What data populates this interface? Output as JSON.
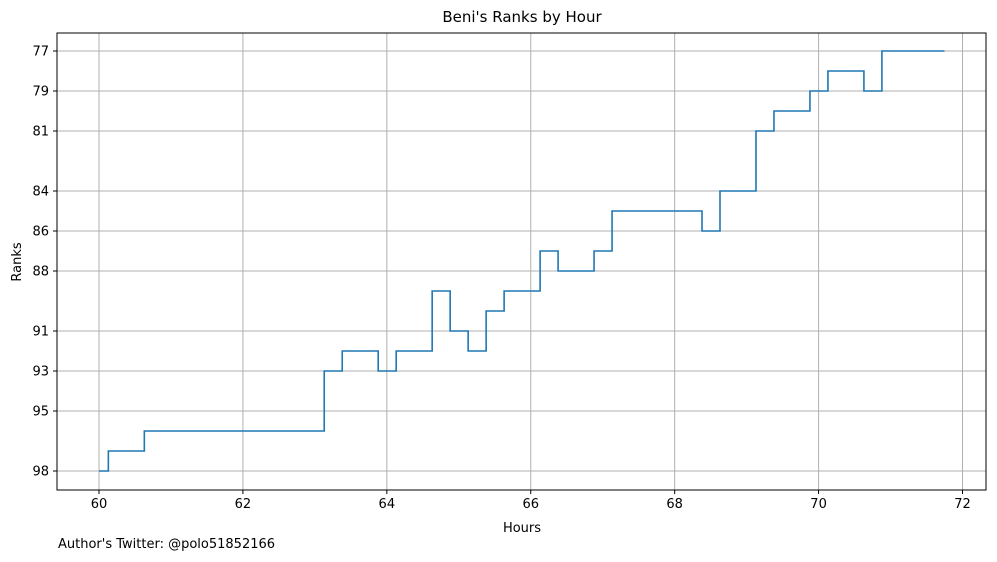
{
  "chart_data": {
    "type": "line",
    "title": "Beni's Ranks by Hour",
    "xlabel": "Hours",
    "ylabel": "Ranks",
    "xlim": [
      59.4,
      72.3
    ],
    "ylim": [
      77,
      98
    ],
    "y_inverted": true,
    "step": "post",
    "grid": true,
    "x_ticks": [
      60,
      62,
      64,
      66,
      68,
      70,
      72
    ],
    "y_ticks": [
      77,
      79,
      81,
      84,
      86,
      88,
      91,
      93,
      95,
      98
    ],
    "series": [
      {
        "color": "#1f77b4",
        "x": [
          60.0,
          60.13,
          60.63,
          63.13,
          63.38,
          63.88,
          64.13,
          64.63,
          64.88,
          65.13,
          65.38,
          65.63,
          66.13,
          66.38,
          66.88,
          67.13,
          68.38,
          68.63,
          69.13,
          69.38,
          69.88,
          70.13,
          70.63,
          70.88,
          71.75
        ],
        "y": [
          98,
          97,
          96,
          93,
          92,
          93,
          92,
          89,
          91,
          92,
          90,
          89,
          87,
          88,
          87,
          85,
          86,
          84,
          81,
          80,
          79,
          78,
          79,
          77,
          77
        ]
      }
    ]
  },
  "footer": "Author's Twitter: @polo51852166"
}
